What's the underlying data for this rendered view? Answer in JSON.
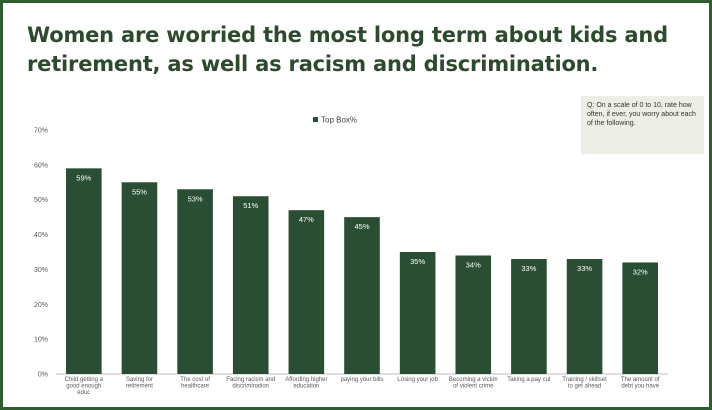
{
  "slide": {
    "title_line1": "Women are worried the  most long term about kids and",
    "title_line2": "retirement, as well as racism and discrimination.",
    "question_note": "Q:  On a scale of 0 to 10, rate how often, if ever, you worry about each of the following."
  },
  "colors": {
    "bar": "#2a4e33",
    "title": "#2e4a2e",
    "border": "#2f5d2f",
    "note_bg": "#edefe6"
  },
  "chart_data": {
    "type": "bar",
    "title": "",
    "xlabel": "",
    "ylabel": "",
    "legend": [
      "Top Box%"
    ],
    "legend_position": "top",
    "ylim": [
      0,
      70
    ],
    "yticks": [
      "0%",
      "10%",
      "20%",
      "30%",
      "40%",
      "50%",
      "60%",
      "70%"
    ],
    "grid": false,
    "categories": [
      [
        "Child  getting a",
        "good enough",
        "educ"
      ],
      [
        "Saving for",
        "retirement"
      ],
      [
        "The cost of",
        "healthcare"
      ],
      [
        "Facing racism and",
        "discrimination"
      ],
      [
        "Affording higher",
        "education"
      ],
      [
        "paying your bills"
      ],
      [
        "Losing your job"
      ],
      [
        "Becoming a victim",
        "of violent crime"
      ],
      [
        "Taking a pay cut"
      ],
      [
        "Training / skillset",
        "to get ahead"
      ],
      [
        "The amount of",
        "debt you have"
      ]
    ],
    "series": [
      {
        "name": "Top Box%",
        "values": [
          59,
          55,
          53,
          51,
          47,
          45,
          35,
          34,
          33,
          33,
          32
        ],
        "labels": [
          "59%",
          "55%",
          "53%",
          "51%",
          "47%",
          "45%",
          "35%",
          "34%",
          "33%",
          "33%",
          "32%"
        ]
      }
    ]
  }
}
